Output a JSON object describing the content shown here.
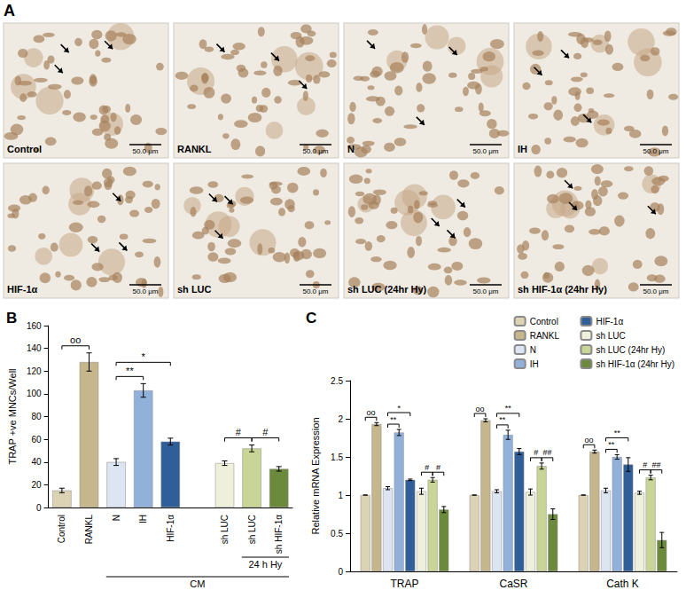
{
  "micrographs": {
    "title": "A",
    "scale_bar": "50.0 μm",
    "labels": [
      "Control",
      "RANKL",
      "N",
      "IH",
      "HIF-1α",
      "sh LUC",
      "sh LUC (24hr Hy)",
      "sh HIF-1α (24hr Hy)"
    ]
  },
  "chart_data": [
    {
      "type": "bar",
      "title": "B",
      "y_label": "TRAP +ve MNCs/Well",
      "categories": [
        "Control",
        "RANKL",
        "N",
        "IH",
        "HIF-1α",
        null,
        "sh LUC",
        "sh LUC",
        "sh HIF-1α"
      ],
      "values": [
        15,
        128,
        40,
        103,
        58,
        null,
        39,
        52,
        34
      ],
      "errors": [
        2,
        8,
        3,
        6,
        3,
        null,
        2,
        3,
        2
      ],
      "colors": [
        "#dcd2b4",
        "#c6b68c",
        "#dde5f2",
        "#92b1da",
        "#2f5e98",
        null,
        "#eef0db",
        "#c8d597",
        "#6b8a3b"
      ],
      "ylim": [
        0,
        160
      ],
      "yticks": [
        0,
        20,
        40,
        60,
        80,
        100,
        120,
        140,
        160
      ],
      "grid": false,
      "annotations": [
        {
          "text": "oo",
          "from": 0,
          "to": 1
        },
        {
          "text": "**",
          "from": 2,
          "to": 3
        },
        {
          "text": "*",
          "from": 2,
          "to": 4
        },
        {
          "text": "#",
          "from": 6,
          "to": 7
        },
        {
          "text": "#",
          "from": 7,
          "to": 8
        }
      ],
      "groups": [
        {
          "text": "CM",
          "from": 2,
          "to": 8
        },
        {
          "text": "24 h Hy",
          "from": 7,
          "to": 8
        }
      ]
    },
    {
      "type": "bar",
      "title": "C",
      "y_label": "Relative mRNA Expression",
      "categories": [
        "TRAP",
        "CaSR",
        "Cath K"
      ],
      "series": [
        {
          "name": "Control",
          "color": "#dcd2b4",
          "values": [
            1.0,
            1.0,
            1.0
          ],
          "errors": [
            0,
            0,
            0
          ]
        },
        {
          "name": "RANKL",
          "color": "#c6b68c",
          "values": [
            1.93,
            1.98,
            1.57
          ],
          "errors": [
            0.02,
            0.02,
            0.02
          ]
        },
        {
          "name": "N",
          "color": "#dde5f2",
          "values": [
            1.09,
            1.05,
            1.06
          ],
          "errors": [
            0.02,
            0.02,
            0.03
          ]
        },
        {
          "name": "IH",
          "color": "#92b1da",
          "values": [
            1.82,
            1.79,
            1.5
          ],
          "errors": [
            0.04,
            0.06,
            0.03
          ]
        },
        {
          "name": "HIF-1α",
          "color": "#2f5e98",
          "values": [
            1.2,
            1.57,
            1.4
          ],
          "errors": [
            0.01,
            0.04,
            0.09
          ]
        },
        {
          "name": "sh LUC",
          "color": "#eef0db",
          "values": [
            1.05,
            1.04,
            1.03
          ],
          "errors": [
            0.04,
            0.04,
            0.02
          ]
        },
        {
          "name": "sh LUC (24hr Hy)",
          "color": "#c8d597",
          "values": [
            1.2,
            1.38,
            1.23
          ],
          "errors": [
            0.03,
            0.04,
            0.03
          ]
        },
        {
          "name": "sh HIF-1α (24hr Hy)",
          "color": "#6b8a3b",
          "values": [
            0.81,
            0.75,
            0.41
          ],
          "errors": [
            0.04,
            0.07,
            0.1
          ]
        }
      ],
      "ylim": [
        0,
        2.5
      ],
      "yticks": [
        0,
        0.5,
        1,
        1.5,
        2,
        2.5
      ],
      "grid": false,
      "legend": "top-right",
      "annotations": [
        {
          "text": "oo",
          "category": 0,
          "from": 0,
          "to": 1
        },
        {
          "text": "**",
          "category": 0,
          "from": 2,
          "to": 3
        },
        {
          "text": "*",
          "category": 0,
          "from": 2,
          "to": 4
        },
        {
          "text": "#",
          "category": 0,
          "from": 5,
          "to": 6
        },
        {
          "text": "#",
          "category": 0,
          "from": 6,
          "to": 7
        },
        {
          "text": "oo",
          "category": 1,
          "from": 0,
          "to": 1
        },
        {
          "text": "**",
          "category": 1,
          "from": 2,
          "to": 3
        },
        {
          "text": "**",
          "category": 1,
          "from": 2,
          "to": 4
        },
        {
          "text": "#",
          "category": 1,
          "from": 5,
          "to": 6
        },
        {
          "text": "##",
          "category": 1,
          "from": 6,
          "to": 7
        },
        {
          "text": "oo",
          "category": 2,
          "from": 0,
          "to": 1
        },
        {
          "text": "**",
          "category": 2,
          "from": 2,
          "to": 3
        },
        {
          "text": "**",
          "category": 2,
          "from": 2,
          "to": 4
        },
        {
          "text": "#",
          "category": 2,
          "from": 5,
          "to": 6
        },
        {
          "text": "##",
          "category": 2,
          "from": 6,
          "to": 7
        }
      ]
    }
  ]
}
